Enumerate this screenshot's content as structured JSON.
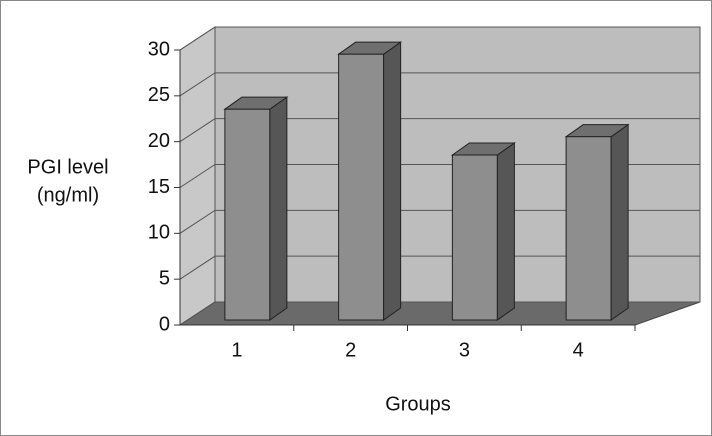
{
  "chart_data": {
    "type": "bar3d",
    "x_label": "Groups",
    "y_label": [
      "PGI level",
      "(ng/ml)"
    ],
    "categories": [
      "1",
      "2",
      "3",
      "4"
    ],
    "values": [
      23,
      29,
      18,
      20
    ],
    "ylim": [
      0,
      30
    ],
    "yticks": [
      0,
      5,
      10,
      15,
      20,
      25,
      30
    ],
    "grid": true,
    "color": "#8e8e8e"
  }
}
